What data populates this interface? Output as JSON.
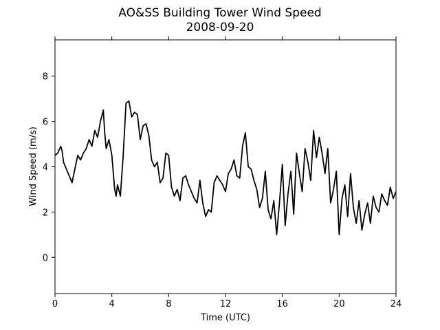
{
  "chart_data": {
    "type": "line",
    "title": "AO&SS Building Tower Wind Speed",
    "subtitle": "2008-09-20",
    "xlabel": "Time (UTC)",
    "ylabel": "Wind Speed (m/s)",
    "xlim": [
      0,
      24
    ],
    "ylim": [
      -1.6,
      9.6
    ],
    "xticks": [
      0,
      4,
      8,
      12,
      16,
      20,
      24
    ],
    "yticks": [
      0,
      2,
      4,
      6,
      8
    ],
    "grid": false,
    "line_color": "#000000",
    "series": [
      {
        "x": [
          0.0,
          0.2,
          0.4,
          0.5,
          0.6,
          0.8,
          1.0,
          1.2,
          1.4,
          1.5,
          1.6,
          1.8,
          2.0,
          2.2,
          2.4,
          2.6,
          2.8,
          3.0,
          3.2,
          3.4,
          3.5,
          3.6,
          3.8,
          4.0,
          4.2,
          4.3,
          4.4,
          4.6,
          4.8,
          5.0,
          5.2,
          5.4,
          5.6,
          5.8,
          6.0,
          6.2,
          6.4,
          6.6,
          6.8,
          7.0,
          7.2,
          7.4,
          7.6,
          7.8,
          8.0,
          8.2,
          8.4,
          8.6,
          8.8,
          9.0,
          9.2,
          9.4,
          9.6,
          9.8,
          10.0,
          10.2,
          10.4,
          10.6,
          10.8,
          11.0,
          11.2,
          11.4,
          11.6,
          11.8,
          12.0,
          12.2,
          12.4,
          12.6,
          12.8,
          13.0,
          13.2,
          13.4,
          13.6,
          13.8,
          14.0,
          14.2,
          14.4,
          14.6,
          14.8,
          15.0,
          15.2,
          15.4,
          15.6,
          15.8,
          16.0,
          16.2,
          16.4,
          16.6,
          16.8,
          17.0,
          17.2,
          17.4,
          17.6,
          17.8,
          18.0,
          18.2,
          18.4,
          18.6,
          18.8,
          19.0,
          19.2,
          19.4,
          19.6,
          19.8,
          20.0,
          20.2,
          20.4,
          20.6,
          20.8,
          21.0,
          21.2,
          21.4,
          21.6,
          21.8,
          22.0,
          22.2,
          22.4,
          22.6,
          22.8,
          23.0,
          23.2,
          23.4,
          23.6,
          23.8,
          24.0
        ],
        "values": [
          4.5,
          4.6,
          4.9,
          4.7,
          4.2,
          3.9,
          3.6,
          3.3,
          3.9,
          4.2,
          4.5,
          4.3,
          4.6,
          4.8,
          5.2,
          4.9,
          5.6,
          5.3,
          6.0,
          6.5,
          5.5,
          4.8,
          5.2,
          4.5,
          3.0,
          2.7,
          3.2,
          2.7,
          4.5,
          6.8,
          6.9,
          6.2,
          6.4,
          6.3,
          5.2,
          5.8,
          5.9,
          5.4,
          4.3,
          4.0,
          4.2,
          3.3,
          3.5,
          4.6,
          4.5,
          3.1,
          2.7,
          3.0,
          2.5,
          3.5,
          3.6,
          3.2,
          2.9,
          2.6,
          2.4,
          3.4,
          2.4,
          1.8,
          2.1,
          2.0,
          3.3,
          3.6,
          3.4,
          3.2,
          2.9,
          3.7,
          3.9,
          4.3,
          3.6,
          3.5,
          4.9,
          5.5,
          4.0,
          3.9,
          3.4,
          3.0,
          2.2,
          2.6,
          3.8,
          2.1,
          1.7,
          2.5,
          1.0,
          2.4,
          4.1,
          1.4,
          2.8,
          3.8,
          1.9,
          4.6,
          3.7,
          2.9,
          4.8,
          4.2,
          3.4,
          5.6,
          4.4,
          5.3,
          4.6,
          3.7,
          4.8,
          2.4,
          3.0,
          3.8,
          1.0,
          2.6,
          3.2,
          1.8,
          3.7,
          2.2,
          1.5,
          2.5,
          1.2,
          1.9,
          2.4,
          1.5,
          2.7,
          2.2,
          2.0,
          2.8,
          2.5,
          2.3,
          3.1,
          2.6,
          2.9
        ]
      }
    ]
  }
}
